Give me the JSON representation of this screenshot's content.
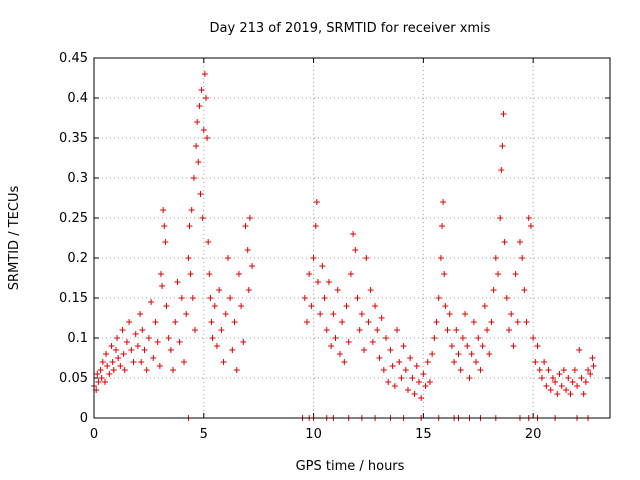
{
  "chart_data": {
    "type": "scatter",
    "title": "Day 213 of 2019, SRMTID for receiver xmis",
    "xlabel": "GPS time / hours",
    "ylabel": "SRMTID / TECUs",
    "xlim": [
      0,
      23.5
    ],
    "ylim": [
      0,
      0.45
    ],
    "x_ticks": [
      0,
      5,
      10,
      15,
      20
    ],
    "x_tick_labels": [
      "0",
      "5",
      "10",
      "15",
      "20"
    ],
    "y_ticks": [
      0,
      0.05,
      0.1,
      0.15,
      0.2,
      0.25,
      0.3,
      0.35,
      0.4,
      0.45
    ],
    "y_tick_labels": [
      "0",
      "0.05",
      "0.1",
      "0.15",
      "0.2",
      "0.25",
      "0.3",
      "0.35",
      "0.4",
      "0.45"
    ],
    "grid": true,
    "marker": "+",
    "color": "#e00000",
    "series": [
      {
        "name": "SRMTID",
        "points": [
          [
            0.0,
            0.04
          ],
          [
            0.1,
            0.035
          ],
          [
            0.15,
            0.055
          ],
          [
            0.2,
            0.045
          ],
          [
            0.3,
            0.06
          ],
          [
            0.35,
            0.05
          ],
          [
            0.4,
            0.07
          ],
          [
            0.5,
            0.045
          ],
          [
            0.55,
            0.08
          ],
          [
            0.6,
            0.065
          ],
          [
            0.7,
            0.055
          ],
          [
            0.8,
            0.09
          ],
          [
            0.85,
            0.07
          ],
          [
            0.9,
            0.06
          ],
          [
            1.0,
            0.085
          ],
          [
            1.05,
            0.1
          ],
          [
            1.1,
            0.075
          ],
          [
            1.2,
            0.065
          ],
          [
            1.3,
            0.11
          ],
          [
            1.35,
            0.08
          ],
          [
            1.4,
            0.06
          ],
          [
            1.5,
            0.095
          ],
          [
            1.6,
            0.12
          ],
          [
            1.7,
            0.085
          ],
          [
            1.8,
            0.07
          ],
          [
            1.9,
            0.105
          ],
          [
            2.0,
            0.09
          ],
          [
            2.1,
            0.13
          ],
          [
            2.15,
            0.07
          ],
          [
            2.2,
            0.11
          ],
          [
            2.3,
            0.085
          ],
          [
            2.4,
            0.06
          ],
          [
            2.5,
            0.1
          ],
          [
            2.6,
            0.145
          ],
          [
            2.7,
            0.075
          ],
          [
            2.8,
            0.12
          ],
          [
            2.9,
            0.095
          ],
          [
            3.0,
            0.065
          ],
          [
            3.05,
            0.18
          ],
          [
            3.1,
            0.165
          ],
          [
            3.15,
            0.26
          ],
          [
            3.2,
            0.24
          ],
          [
            3.25,
            0.22
          ],
          [
            3.3,
            0.14
          ],
          [
            3.4,
            0.1
          ],
          [
            3.5,
            0.085
          ],
          [
            3.6,
            0.06
          ],
          [
            3.7,
            0.12
          ],
          [
            3.8,
            0.17
          ],
          [
            3.9,
            0.095
          ],
          [
            4.0,
            0.15
          ],
          [
            4.1,
            0.07
          ],
          [
            4.2,
            0.13
          ],
          [
            4.3,
            0.2
          ],
          [
            4.35,
            0.24
          ],
          [
            4.4,
            0.18
          ],
          [
            4.45,
            0.26
          ],
          [
            4.5,
            0.15
          ],
          [
            4.55,
            0.3
          ],
          [
            4.6,
            0.11
          ],
          [
            4.65,
            0.34
          ],
          [
            4.7,
            0.37
          ],
          [
            4.75,
            0.32
          ],
          [
            4.8,
            0.39
          ],
          [
            4.85,
            0.28
          ],
          [
            4.9,
            0.41
          ],
          [
            4.95,
            0.25
          ],
          [
            5.0,
            0.36
          ],
          [
            5.05,
            0.43
          ],
          [
            5.1,
            0.4
          ],
          [
            5.15,
            0.35
          ],
          [
            5.2,
            0.22
          ],
          [
            5.25,
            0.18
          ],
          [
            5.3,
            0.15
          ],
          [
            5.35,
            0.12
          ],
          [
            5.4,
            0.1
          ],
          [
            5.5,
            0.14
          ],
          [
            5.6,
            0.09
          ],
          [
            5.7,
            0.16
          ],
          [
            5.8,
            0.11
          ],
          [
            5.9,
            0.07
          ],
          [
            6.0,
            0.13
          ],
          [
            6.1,
            0.2
          ],
          [
            6.2,
            0.15
          ],
          [
            6.3,
            0.085
          ],
          [
            6.4,
            0.12
          ],
          [
            6.5,
            0.06
          ],
          [
            6.6,
            0.18
          ],
          [
            6.7,
            0.14
          ],
          [
            6.8,
            0.095
          ],
          [
            6.9,
            0.24
          ],
          [
            7.0,
            0.21
          ],
          [
            7.05,
            0.16
          ],
          [
            7.1,
            0.25
          ],
          [
            7.2,
            0.19
          ],
          [
            9.6,
            0.15
          ],
          [
            9.7,
            0.12
          ],
          [
            9.8,
            0.18
          ],
          [
            9.9,
            0.14
          ],
          [
            10.0,
            0.2
          ],
          [
            10.1,
            0.24
          ],
          [
            10.15,
            0.27
          ],
          [
            10.2,
            0.17
          ],
          [
            10.3,
            0.13
          ],
          [
            10.4,
            0.19
          ],
          [
            10.5,
            0.15
          ],
          [
            10.6,
            0.11
          ],
          [
            10.7,
            0.17
          ],
          [
            10.8,
            0.09
          ],
          [
            10.9,
            0.13
          ],
          [
            11.0,
            0.1
          ],
          [
            11.1,
            0.16
          ],
          [
            11.2,
            0.08
          ],
          [
            11.3,
            0.12
          ],
          [
            11.4,
            0.07
          ],
          [
            11.5,
            0.14
          ],
          [
            11.6,
            0.095
          ],
          [
            11.7,
            0.18
          ],
          [
            11.8,
            0.23
          ],
          [
            11.9,
            0.21
          ],
          [
            12.0,
            0.15
          ],
          [
            12.1,
            0.11
          ],
          [
            12.2,
            0.13
          ],
          [
            12.3,
            0.085
          ],
          [
            12.4,
            0.2
          ],
          [
            12.5,
            0.12
          ],
          [
            12.6,
            0.16
          ],
          [
            12.7,
            0.095
          ],
          [
            12.8,
            0.14
          ],
          [
            12.9,
            0.11
          ],
          [
            13.0,
            0.075
          ],
          [
            13.1,
            0.125
          ],
          [
            13.2,
            0.06
          ],
          [
            13.3,
            0.1
          ],
          [
            13.4,
            0.045
          ],
          [
            13.5,
            0.085
          ],
          [
            13.6,
            0.065
          ],
          [
            13.7,
            0.04
          ],
          [
            13.8,
            0.11
          ],
          [
            13.9,
            0.07
          ],
          [
            14.0,
            0.05
          ],
          [
            14.1,
            0.09
          ],
          [
            14.2,
            0.06
          ],
          [
            14.3,
            0.035
          ],
          [
            14.4,
            0.075
          ],
          [
            14.5,
            0.05
          ],
          [
            14.6,
            0.03
          ],
          [
            14.7,
            0.065
          ],
          [
            14.8,
            0.045
          ],
          [
            14.9,
            0.025
          ],
          [
            15.0,
            0.055
          ],
          [
            15.1,
            0.04
          ],
          [
            15.2,
            0.07
          ],
          [
            15.3,
            0.045
          ],
          [
            15.4,
            0.08
          ],
          [
            15.5,
            0.1
          ],
          [
            15.6,
            0.12
          ],
          [
            15.7,
            0.15
          ],
          [
            15.8,
            0.2
          ],
          [
            15.85,
            0.24
          ],
          [
            15.9,
            0.27
          ],
          [
            15.95,
            0.18
          ],
          [
            16.0,
            0.14
          ],
          [
            16.1,
            0.11
          ],
          [
            16.2,
            0.13
          ],
          [
            16.3,
            0.09
          ],
          [
            16.4,
            0.07
          ],
          [
            16.5,
            0.11
          ],
          [
            16.6,
            0.08
          ],
          [
            16.7,
            0.06
          ],
          [
            16.8,
            0.1
          ],
          [
            16.9,
            0.13
          ],
          [
            17.0,
            0.09
          ],
          [
            17.1,
            0.05
          ],
          [
            17.2,
            0.08
          ],
          [
            17.3,
            0.12
          ],
          [
            17.4,
            0.07
          ],
          [
            17.5,
            0.1
          ],
          [
            17.6,
            0.06
          ],
          [
            17.7,
            0.09
          ],
          [
            17.8,
            0.14
          ],
          [
            17.9,
            0.11
          ],
          [
            18.0,
            0.08
          ],
          [
            18.1,
            0.12
          ],
          [
            18.2,
            0.16
          ],
          [
            18.3,
            0.2
          ],
          [
            18.4,
            0.18
          ],
          [
            18.5,
            0.25
          ],
          [
            18.55,
            0.31
          ],
          [
            18.6,
            0.34
          ],
          [
            18.65,
            0.38
          ],
          [
            18.7,
            0.22
          ],
          [
            18.8,
            0.15
          ],
          [
            18.9,
            0.11
          ],
          [
            19.0,
            0.13
          ],
          [
            19.1,
            0.09
          ],
          [
            19.2,
            0.18
          ],
          [
            19.3,
            0.12
          ],
          [
            19.4,
            0.22
          ],
          [
            19.5,
            0.2
          ],
          [
            19.6,
            0.16
          ],
          [
            19.7,
            0.12
          ],
          [
            19.8,
            0.25
          ],
          [
            19.9,
            0.24
          ],
          [
            20.0,
            0.1
          ],
          [
            20.1,
            0.07
          ],
          [
            20.2,
            0.09
          ],
          [
            20.3,
            0.06
          ],
          [
            20.4,
            0.05
          ],
          [
            20.5,
            0.07
          ],
          [
            20.6,
            0.04
          ],
          [
            20.7,
            0.06
          ],
          [
            20.8,
            0.035
          ],
          [
            20.9,
            0.05
          ],
          [
            21.0,
            0.045
          ],
          [
            21.1,
            0.03
          ],
          [
            21.2,
            0.055
          ],
          [
            21.3,
            0.04
          ],
          [
            21.4,
            0.06
          ],
          [
            21.5,
            0.035
          ],
          [
            21.6,
            0.05
          ],
          [
            21.7,
            0.03
          ],
          [
            21.8,
            0.045
          ],
          [
            21.9,
            0.06
          ],
          [
            22.0,
            0.04
          ],
          [
            22.1,
            0.085
          ],
          [
            22.2,
            0.05
          ],
          [
            22.3,
            0.03
          ],
          [
            22.4,
            0.045
          ],
          [
            22.5,
            0.06
          ],
          [
            22.6,
            0.055
          ],
          [
            22.7,
            0.075
          ],
          [
            22.75,
            0.065
          ],
          [
            4.3,
            0.0
          ],
          [
            9.5,
            0.0
          ],
          [
            9.8,
            0.0
          ],
          [
            10.0,
            0.0
          ],
          [
            10.6,
            0.0
          ],
          [
            10.9,
            0.0
          ],
          [
            11.6,
            0.0
          ],
          [
            12.2,
            0.0
          ],
          [
            12.8,
            0.0
          ],
          [
            13.5,
            0.0
          ],
          [
            14.1,
            0.0
          ],
          [
            14.9,
            0.0
          ],
          [
            15.7,
            0.0
          ],
          [
            16.4,
            0.0
          ],
          [
            16.6,
            0.0
          ],
          [
            17.1,
            0.0
          ],
          [
            17.6,
            0.0
          ],
          [
            18.3,
            0.0
          ],
          [
            19.4,
            0.0
          ],
          [
            19.8,
            0.0
          ],
          [
            20.2,
            0.0
          ],
          [
            21.0,
            0.0
          ],
          [
            22.0,
            0.0
          ],
          [
            22.5,
            0.0
          ]
        ]
      }
    ]
  }
}
